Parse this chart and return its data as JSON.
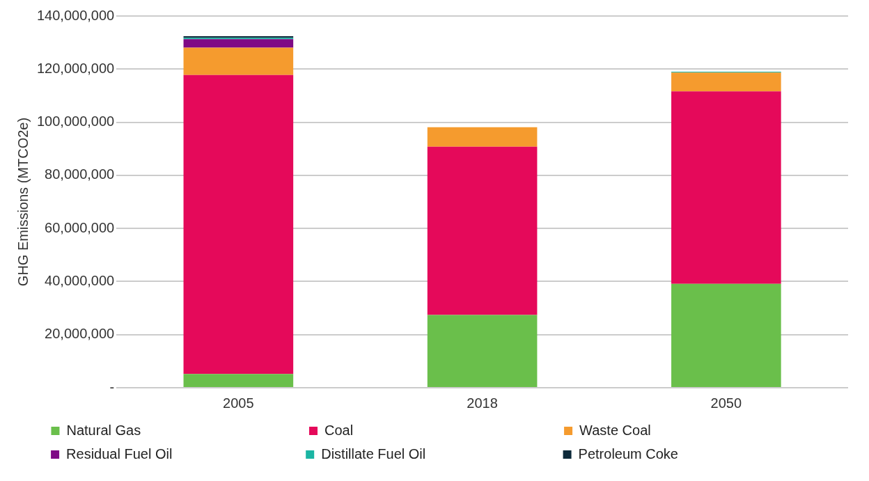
{
  "chart_data": {
    "type": "bar",
    "stacked": true,
    "ylabel": "GHG Emissions (MTCO2e)",
    "categories": [
      "2005",
      "2018",
      "2050"
    ],
    "series": [
      {
        "name": "Natural Gas",
        "color": "#6abf4b",
        "values": [
          5200000,
          27400000,
          39100000
        ]
      },
      {
        "name": "Coal",
        "color": "#e5095a",
        "values": [
          112600000,
          63400000,
          72500000
        ]
      },
      {
        "name": "Waste Coal",
        "color": "#f59b2e",
        "values": [
          10300000,
          7300000,
          7100000
        ]
      },
      {
        "name": "Residual Fuel Oil",
        "color": "#7f0a85",
        "values": [
          3200000,
          0,
          0
        ]
      },
      {
        "name": "Distillate Fuel Oil",
        "color": "#1bb5a3",
        "values": [
          500000,
          0,
          300000
        ]
      },
      {
        "name": "Petroleum Coke",
        "color": "#0d2a3a",
        "values": [
          600000,
          0,
          0
        ]
      }
    ],
    "ylim": [
      0,
      140000000
    ],
    "yticks": [
      {
        "value": 0,
        "label": "-"
      },
      {
        "value": 20000000,
        "label": "20,000,000"
      },
      {
        "value": 40000000,
        "label": "40,000,000"
      },
      {
        "value": 60000000,
        "label": "60,000,000"
      },
      {
        "value": 80000000,
        "label": "80,000,000"
      },
      {
        "value": 100000000,
        "label": "100,000,000"
      },
      {
        "value": 120000000,
        "label": "120,000,000"
      },
      {
        "value": 140000000,
        "label": "140,000,000"
      }
    ],
    "grid": "y",
    "legend": "bottom"
  }
}
